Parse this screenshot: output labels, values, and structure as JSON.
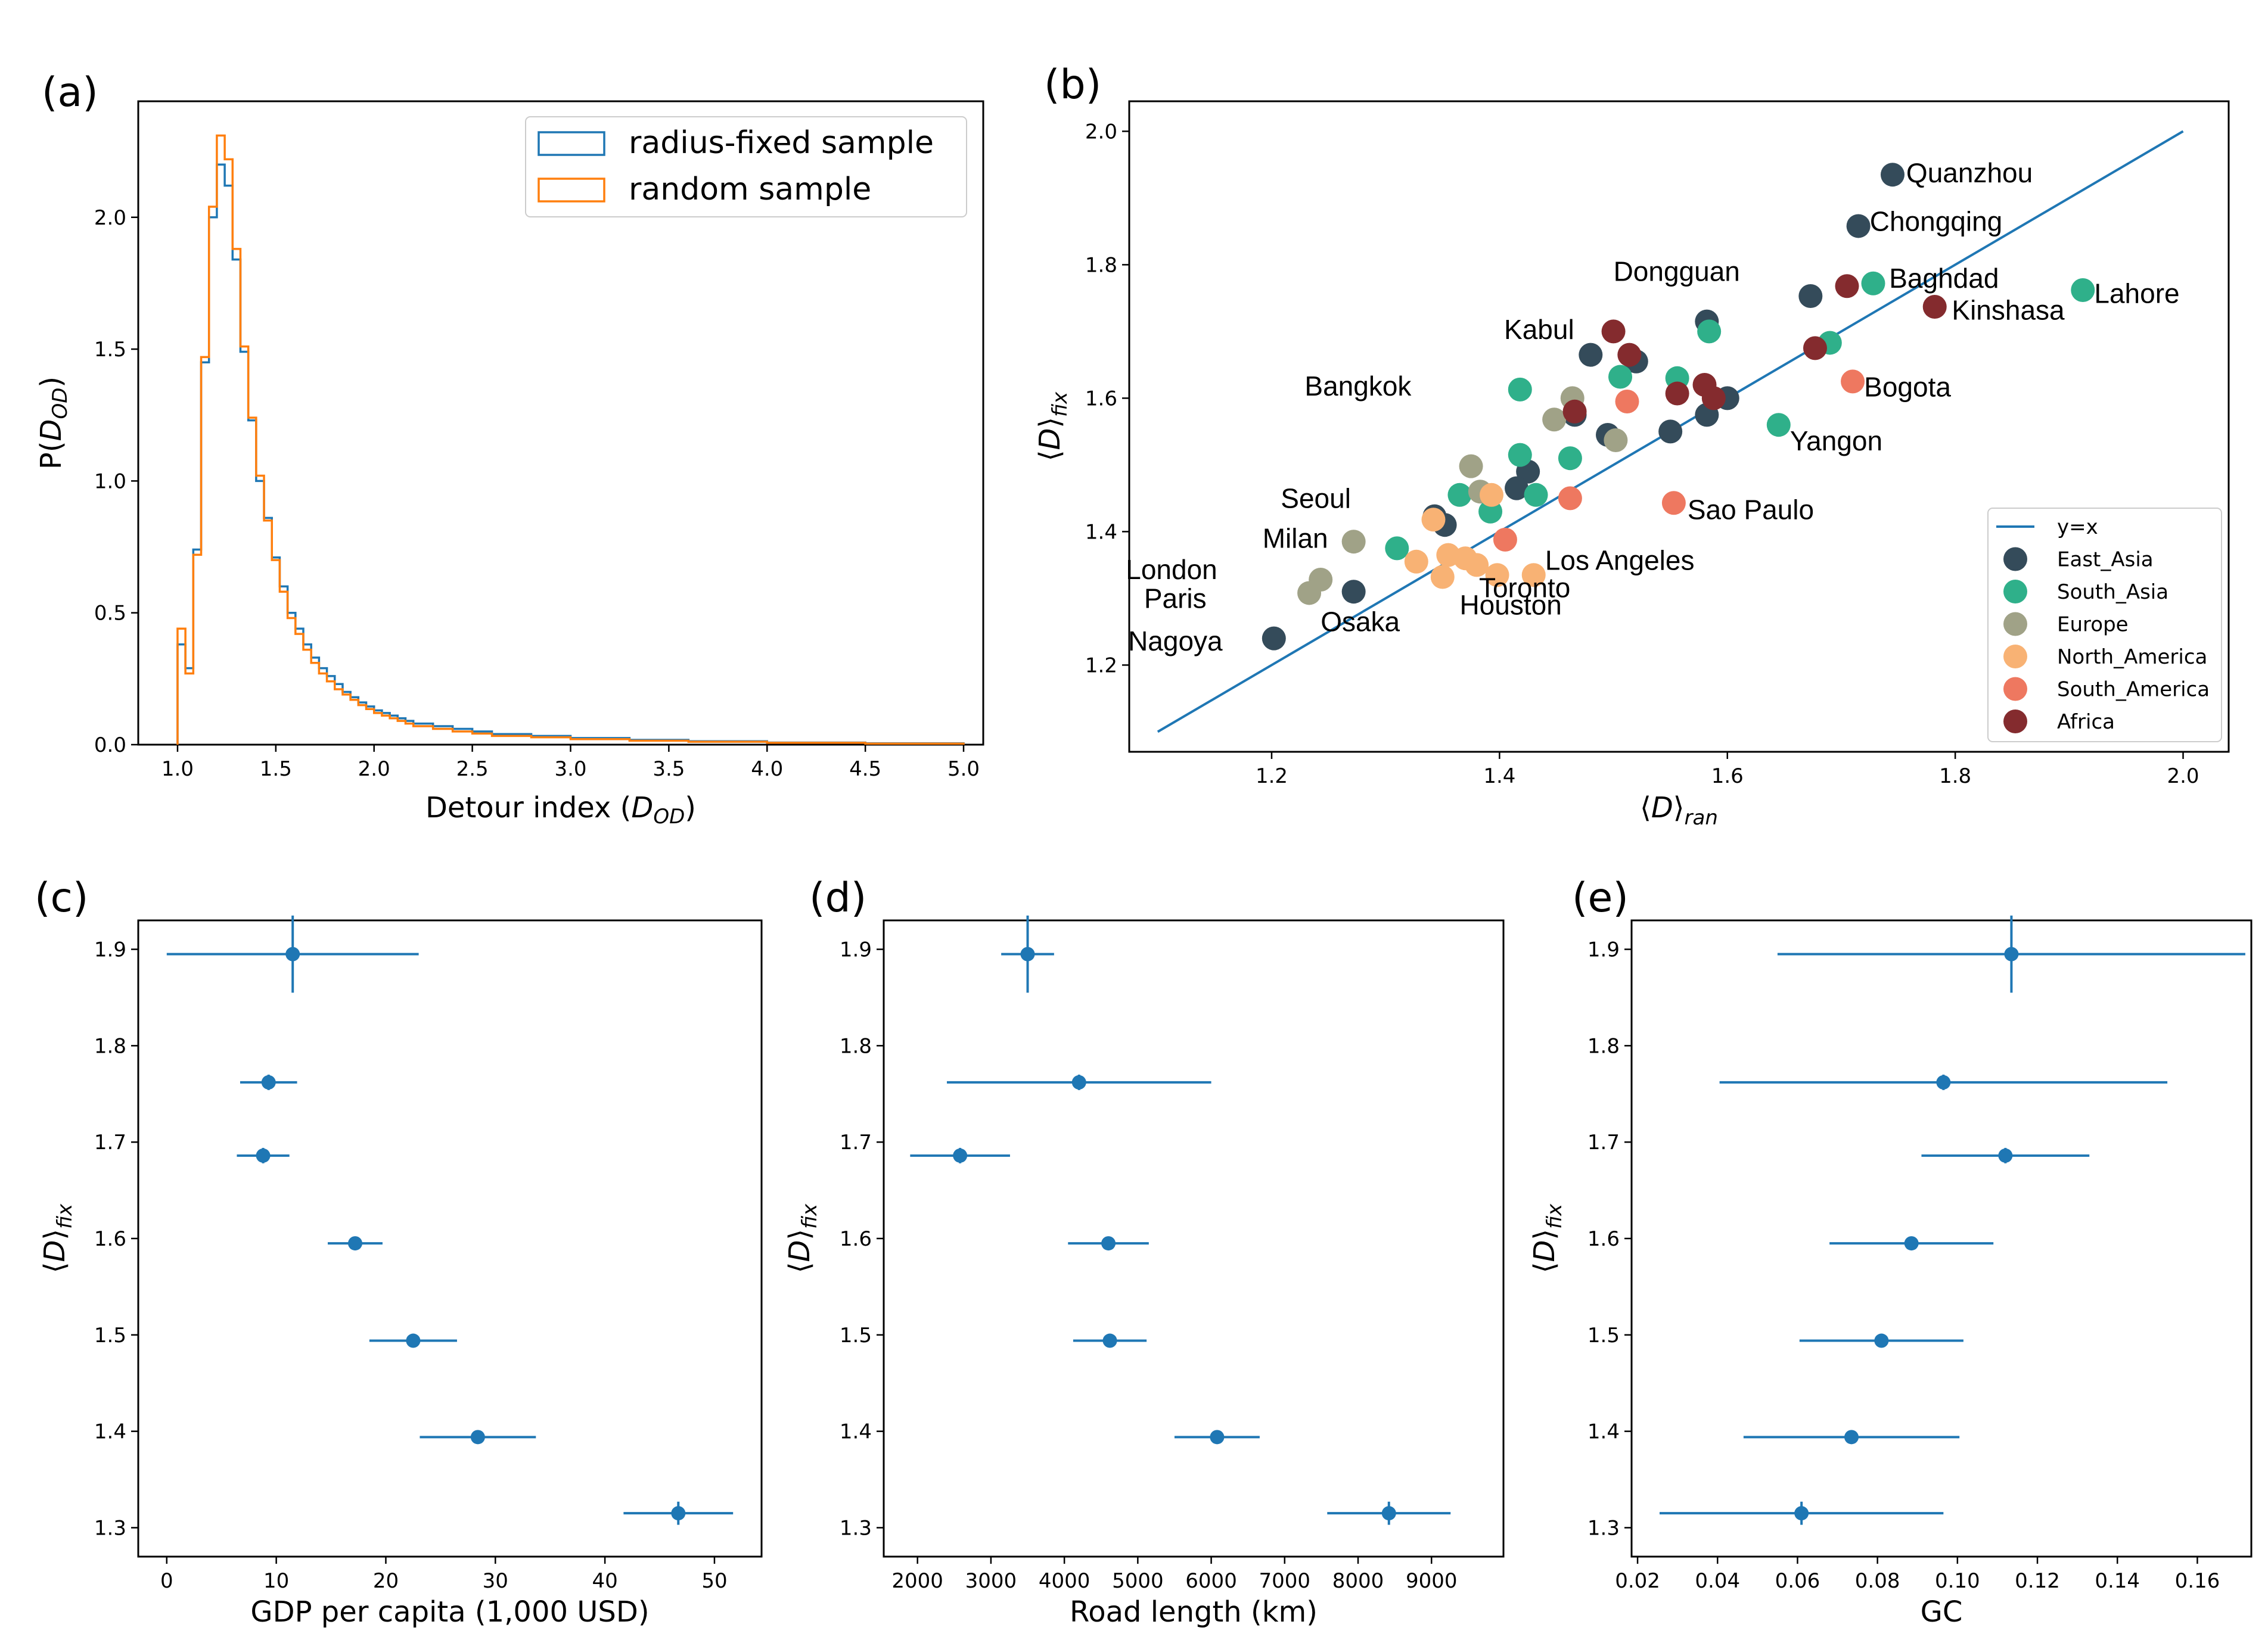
{
  "colors": {
    "blue": "#1f77b4",
    "orange": "#ff7f0e",
    "East_Asia": "#344b5a",
    "South_Asia": "#2fb08a",
    "Europe": "#a0a287",
    "North_America": "#f8b274",
    "South_America": "#ee7860",
    "Africa": "#842b2e"
  },
  "chart_data": [
    {
      "panel": "(a)",
      "type": "histogram",
      "xlabel": "Detour index (D_OD)",
      "ylabel": "P(D_OD)",
      "xlim": [
        0.8,
        5.1
      ],
      "ylim": [
        0,
        2.44
      ],
      "xticks": [
        "1.0",
        "1.5",
        "2.0",
        "2.5",
        "3.0",
        "3.5",
        "4.0",
        "4.5",
        "5.0"
      ],
      "yticks": [
        "0.0",
        "0.5",
        "1.0",
        "1.5",
        "2.0"
      ],
      "legend": {
        "position": "top-right",
        "entries": [
          "radius-fixed sample",
          "random sample"
        ]
      },
      "bin_edges": [
        1.0,
        1.04,
        1.08,
        1.12,
        1.16,
        1.2,
        1.24,
        1.28,
        1.32,
        1.36,
        1.4,
        1.44,
        1.48,
        1.52,
        1.56,
        1.6,
        1.64,
        1.68,
        1.72,
        1.76,
        1.8,
        1.84,
        1.88,
        1.92,
        1.96,
        2.0,
        2.04,
        2.08,
        2.12,
        2.16,
        2.2,
        2.3,
        2.4,
        2.5,
        2.6,
        2.8,
        3.0,
        3.3,
        3.6,
        4.0,
        4.5,
        5.0
      ],
      "series": [
        {
          "name": "radius-fixed sample",
          "values": [
            0.38,
            0.29,
            0.74,
            1.45,
            2.0,
            2.2,
            2.12,
            1.84,
            1.49,
            1.23,
            1.0,
            0.86,
            0.71,
            0.6,
            0.5,
            0.44,
            0.38,
            0.33,
            0.29,
            0.26,
            0.23,
            0.2,
            0.18,
            0.16,
            0.145,
            0.13,
            0.12,
            0.11,
            0.1,
            0.09,
            0.08,
            0.07,
            0.06,
            0.05,
            0.04,
            0.033,
            0.025,
            0.018,
            0.013,
            0.008,
            0.005
          ]
        },
        {
          "name": "random sample",
          "values": [
            0.44,
            0.27,
            0.72,
            1.47,
            2.04,
            2.31,
            2.22,
            1.88,
            1.51,
            1.24,
            1.02,
            0.85,
            0.7,
            0.58,
            0.48,
            0.42,
            0.36,
            0.31,
            0.27,
            0.24,
            0.21,
            0.19,
            0.17,
            0.15,
            0.135,
            0.12,
            0.11,
            0.1,
            0.09,
            0.08,
            0.07,
            0.06,
            0.05,
            0.042,
            0.033,
            0.028,
            0.021,
            0.015,
            0.011,
            0.007,
            0.004
          ]
        }
      ]
    },
    {
      "panel": "(b)",
      "type": "scatter",
      "xlabel": "⟨D⟩ran",
      "ylabel": "⟨D⟩fix",
      "xlim": [
        1.075,
        2.04
      ],
      "ylim": [
        1.07,
        2.045
      ],
      "xticks": [
        "1.2",
        "1.4",
        "1.6",
        "1.8",
        "2.0"
      ],
      "yticks": [
        "1.2",
        "1.4",
        "1.6",
        "1.8",
        "2.0"
      ],
      "line": {
        "name": "y=x",
        "x": [
          1.1,
          2.0
        ],
        "y": [
          1.1,
          2.0
        ]
      },
      "legend": {
        "position": "bottom-right",
        "entries": [
          "y=x",
          "East_Asia",
          "South_Asia",
          "Europe",
          "North_America",
          "South_America",
          "Africa"
        ]
      },
      "series": [
        {
          "name": "East_Asia",
          "points": [
            [
              1.745,
              1.935
            ],
            [
              1.715,
              1.858
            ],
            [
              1.673,
              1.753
            ],
            [
              1.582,
              1.715
            ],
            [
              1.202,
              1.24
            ],
            [
              1.272,
              1.31
            ],
            [
              1.343,
              1.423
            ],
            [
              1.352,
              1.41
            ],
            [
              1.425,
              1.49
            ],
            [
              1.415,
              1.465
            ],
            [
              1.48,
              1.665
            ],
            [
              1.52,
              1.655
            ],
            [
              1.495,
              1.545
            ],
            [
              1.55,
              1.55
            ],
            [
              1.582,
              1.575
            ],
            [
              1.6,
              1.6
            ],
            [
              1.466,
              1.575
            ]
          ]
        },
        {
          "name": "South_Asia",
          "points": [
            [
              1.912,
              1.762
            ],
            [
              1.728,
              1.772
            ],
            [
              1.69,
              1.683
            ],
            [
              1.584,
              1.7
            ],
            [
              1.556,
              1.63
            ],
            [
              1.645,
              1.56
            ],
            [
              1.418,
              1.613
            ],
            [
              1.418,
              1.515
            ],
            [
              1.462,
              1.51
            ],
            [
              1.365,
              1.455
            ],
            [
              1.392,
              1.43
            ],
            [
              1.31,
              1.375
            ],
            [
              1.432,
              1.455
            ],
            [
              1.506,
              1.632
            ]
          ]
        },
        {
          "name": "Europe",
          "points": [
            [
              1.272,
              1.385
            ],
            [
              1.243,
              1.328
            ],
            [
              1.233,
              1.308
            ],
            [
              1.375,
              1.498
            ],
            [
              1.383,
              1.46
            ],
            [
              1.464,
              1.6
            ],
            [
              1.448,
              1.568
            ],
            [
              1.502,
              1.537
            ]
          ]
        },
        {
          "name": "North_America",
          "points": [
            [
              1.393,
              1.455
            ],
            [
              1.355,
              1.365
            ],
            [
              1.37,
              1.36
            ],
            [
              1.38,
              1.35
            ],
            [
              1.398,
              1.335
            ],
            [
              1.35,
              1.332
            ],
            [
              1.43,
              1.335
            ],
            [
              1.342,
              1.418
            ],
            [
              1.327,
              1.355
            ]
          ]
        },
        {
          "name": "South_America",
          "points": [
            [
              1.71,
              1.625
            ],
            [
              1.553,
              1.443
            ],
            [
              1.462,
              1.45
            ],
            [
              1.512,
              1.595
            ],
            [
              1.405,
              1.388
            ]
          ]
        },
        {
          "name": "Africa",
          "points": [
            [
              1.782,
              1.737
            ],
            [
              1.705,
              1.768
            ],
            [
              1.677,
              1.675
            ],
            [
              1.5,
              1.7
            ],
            [
              1.514,
              1.665
            ],
            [
              1.556,
              1.607
            ],
            [
              1.58,
              1.62
            ],
            [
              1.588,
              1.6
            ],
            [
              1.466,
              1.58
            ]
          ]
        }
      ],
      "annotations": [
        {
          "text": "Quanzhou",
          "x": 1.757,
          "y": 1.938
        },
        {
          "text": "Chongqing",
          "x": 1.725,
          "y": 1.865
        },
        {
          "text": "Dongguan",
          "x": 1.5,
          "y": 1.79
        },
        {
          "text": "Baghdad",
          "x": 1.742,
          "y": 1.78
        },
        {
          "text": "Lahore",
          "x": 1.922,
          "y": 1.757
        },
        {
          "text": "Kinshasa",
          "x": 1.797,
          "y": 1.732
        },
        {
          "text": "Kabul",
          "x": 1.404,
          "y": 1.703
        },
        {
          "text": "Bangkok",
          "x": 1.229,
          "y": 1.618
        },
        {
          "text": "Bogota",
          "x": 1.72,
          "y": 1.617
        },
        {
          "text": "Yangon",
          "x": 1.655,
          "y": 1.536
        },
        {
          "text": "Seoul",
          "x": 1.208,
          "y": 1.45
        },
        {
          "text": "Sao Paulo",
          "x": 1.565,
          "y": 1.433
        },
        {
          "text": "Milan",
          "x": 1.192,
          "y": 1.39
        },
        {
          "text": "Los Angeles",
          "x": 1.44,
          "y": 1.357
        },
        {
          "text": "London",
          "x": 1.072,
          "y": 1.343
        },
        {
          "text": "Toronto",
          "x": 1.382,
          "y": 1.316
        },
        {
          "text": "Paris",
          "x": 1.088,
          "y": 1.3
        },
        {
          "text": "Houston",
          "x": 1.365,
          "y": 1.29
        },
        {
          "text": "Osaka",
          "x": 1.243,
          "y": 1.265
        },
        {
          "text": "Nagoya",
          "x": 1.074,
          "y": 1.236
        }
      ]
    },
    {
      "panel": "(c)",
      "type": "errorbar",
      "xlabel": "GDP per capita (1,000 USD)",
      "ylabel": "⟨D⟩fix",
      "xlim": [
        -2.6,
        54.3
      ],
      "ylim": [
        1.27,
        1.93
      ],
      "xticks": [
        "0",
        "10",
        "20",
        "30",
        "40",
        "50"
      ],
      "yticks": [
        "1.3",
        "1.4",
        "1.5",
        "1.6",
        "1.7",
        "1.8",
        "1.9"
      ],
      "points": [
        {
          "x": 11.5,
          "y": 1.895,
          "xerr": 11.5,
          "yerr": 0.04
        },
        {
          "x": 9.3,
          "y": 1.762,
          "xerr": 2.6,
          "yerr": 0.008
        },
        {
          "x": 8.8,
          "y": 1.686,
          "xerr": 2.4,
          "yerr": 0.008
        },
        {
          "x": 17.2,
          "y": 1.595,
          "xerr": 2.5,
          "yerr": 0.007
        },
        {
          "x": 22.5,
          "y": 1.494,
          "xerr": 4.0,
          "yerr": 0.007
        },
        {
          "x": 28.4,
          "y": 1.394,
          "xerr": 5.3,
          "yerr": 0.007
        },
        {
          "x": 46.7,
          "y": 1.315,
          "xerr": 5.0,
          "yerr": 0.012
        }
      ]
    },
    {
      "panel": "(d)",
      "type": "errorbar",
      "xlabel": "Road length (km)",
      "ylabel": "⟨D⟩fix",
      "xlim": [
        1540,
        9980
      ],
      "ylim": [
        1.27,
        1.93
      ],
      "xticks": [
        "2000",
        "3000",
        "4000",
        "5000",
        "6000",
        "7000",
        "8000",
        "9000"
      ],
      "yticks": [
        "1.3",
        "1.4",
        "1.5",
        "1.6",
        "1.7",
        "1.8",
        "1.9"
      ],
      "points": [
        {
          "x": 3500,
          "y": 1.895,
          "xerr": 360,
          "yerr": 0.04
        },
        {
          "x": 4200,
          "y": 1.762,
          "xerr": 1800,
          "yerr": 0.008
        },
        {
          "x": 2580,
          "y": 1.686,
          "xerr": 680,
          "yerr": 0.008
        },
        {
          "x": 4600,
          "y": 1.595,
          "xerr": 550,
          "yerr": 0.007
        },
        {
          "x": 4620,
          "y": 1.494,
          "xerr": 500,
          "yerr": 0.007
        },
        {
          "x": 6080,
          "y": 1.394,
          "xerr": 580,
          "yerr": 0.007
        },
        {
          "x": 8420,
          "y": 1.315,
          "xerr": 840,
          "yerr": 0.012
        }
      ]
    },
    {
      "panel": "(e)",
      "type": "errorbar",
      "xlabel": "GC",
      "ylabel": "⟨D⟩fix",
      "xlim": [
        0.0185,
        0.1735
      ],
      "ylim": [
        1.27,
        1.93
      ],
      "xticks": [
        "0.02",
        "0.04",
        "0.06",
        "0.08",
        "0.10",
        "0.12",
        "0.14",
        "0.16"
      ],
      "yticks": [
        "1.3",
        "1.4",
        "1.5",
        "1.6",
        "1.7",
        "1.8",
        "1.9"
      ],
      "points": [
        {
          "x": 0.1135,
          "y": 1.895,
          "xerr": 0.0585,
          "yerr": 0.04
        },
        {
          "x": 0.0965,
          "y": 1.762,
          "xerr": 0.056,
          "yerr": 0.008
        },
        {
          "x": 0.112,
          "y": 1.686,
          "xerr": 0.021,
          "yerr": 0.008
        },
        {
          "x": 0.0885,
          "y": 1.595,
          "xerr": 0.0205,
          "yerr": 0.007
        },
        {
          "x": 0.081,
          "y": 1.494,
          "xerr": 0.0205,
          "yerr": 0.007
        },
        {
          "x": 0.0735,
          "y": 1.394,
          "xerr": 0.027,
          "yerr": 0.007
        },
        {
          "x": 0.061,
          "y": 1.315,
          "xerr": 0.0355,
          "yerr": 0.012
        }
      ]
    }
  ]
}
